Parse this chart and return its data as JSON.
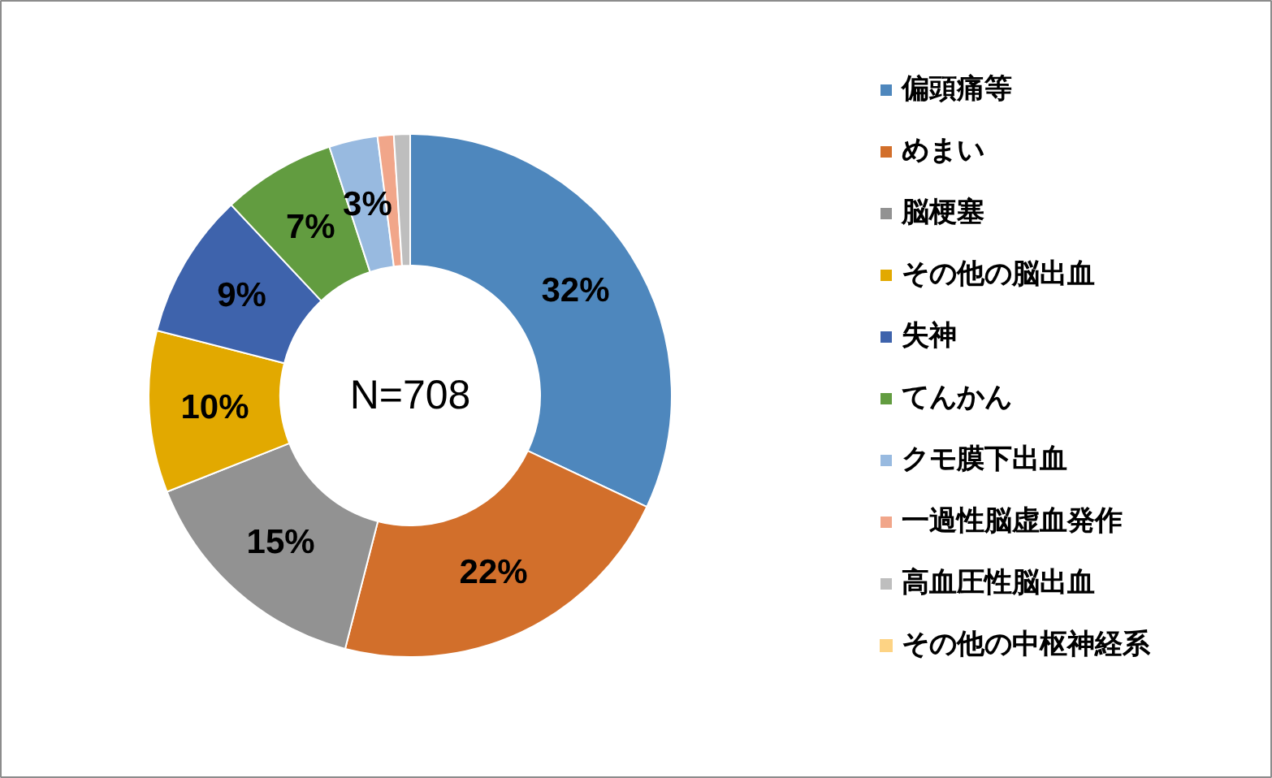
{
  "chart_data": {
    "type": "donut",
    "categories": [
      "偏頭痛等",
      "めまい",
      "脳梗塞",
      "その他の脳出血",
      "失神",
      "てんかん",
      "クモ膜下出血",
      "一過性脳虚血発作",
      "高血圧性脳出血",
      "その他の中枢神経系"
    ],
    "values": [
      32,
      22,
      15,
      10,
      9,
      7,
      3,
      1,
      1,
      0
    ],
    "colors": [
      "#4e87bd",
      "#d26f2b",
      "#929292",
      "#e2a900",
      "#3e63ac",
      "#629c40",
      "#98bae0",
      "#f1a68a",
      "#bebebe",
      "#fdd384"
    ],
    "value_labels": [
      "32%",
      "22%",
      "15%",
      "10%",
      "9%",
      "7%",
      "3%",
      null,
      null,
      null
    ],
    "annotations": [
      "N=708"
    ],
    "legend": "right"
  }
}
